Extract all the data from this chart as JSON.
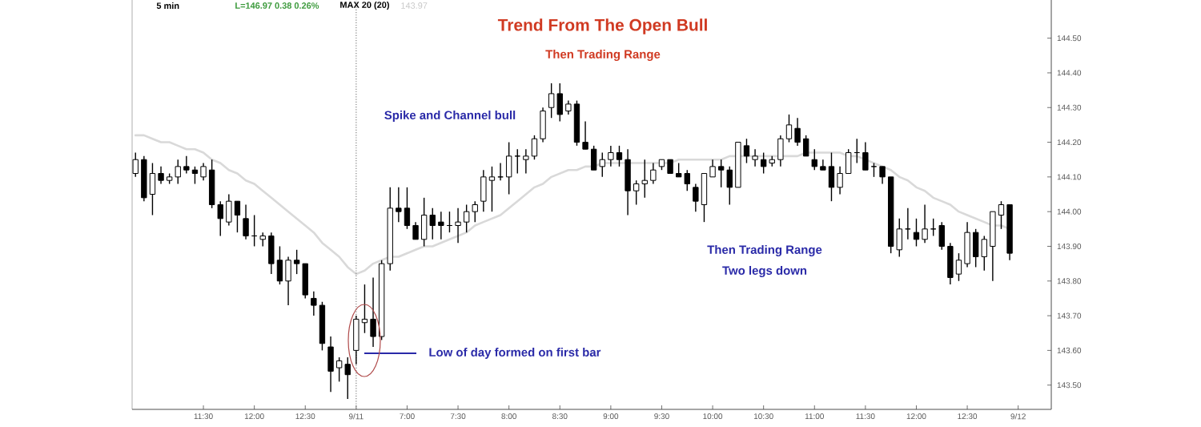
{
  "chart_data": {
    "type": "candlestick",
    "title": "Trend From The Open Bull",
    "subtitle": "Then Trading Range",
    "categories": [
      null,
      null,
      null,
      null,
      null,
      null,
      null,
      null,
      "11:30",
      null,
      null,
      null,
      null,
      null,
      "12:00",
      null,
      null,
      null,
      null,
      null,
      "12:30",
      null,
      null,
      null,
      null,
      null,
      "9/11",
      null,
      null,
      null,
      null,
      null,
      "7:00",
      null,
      null,
      null,
      null,
      null,
      "7:30",
      null,
      null,
      null,
      null,
      null,
      "8:00",
      null,
      null,
      null,
      null,
      null,
      "8:30",
      null,
      null,
      null,
      null,
      null,
      "9:00",
      null,
      null,
      null,
      null,
      null,
      "9:30",
      null,
      null,
      null,
      null,
      null,
      "10:00",
      null,
      null,
      null,
      null,
      null,
      "10:30",
      null,
      null,
      null,
      null,
      null,
      "11:00",
      null,
      null,
      null,
      null,
      null,
      "11:30",
      null,
      null,
      null,
      null,
      null,
      "12:00",
      null,
      null,
      null,
      null,
      null,
      "12:30",
      null,
      null,
      null,
      null,
      null,
      "9/12"
    ],
    "ohlc": [
      [
        144.11,
        144.17,
        144.1,
        144.15
      ],
      [
        144.15,
        144.16,
        144.03,
        144.04
      ],
      [
        144.05,
        144.14,
        143.99,
        144.11
      ],
      [
        144.11,
        144.13,
        144.08,
        144.09
      ],
      [
        144.09,
        144.11,
        144.08,
        144.1
      ],
      [
        144.1,
        144.15,
        144.08,
        144.13
      ],
      [
        144.13,
        144.16,
        144.11,
        144.12
      ],
      [
        144.12,
        144.13,
        144.08,
        144.11
      ],
      [
        144.1,
        144.14,
        144.09,
        144.13
      ],
      [
        144.12,
        144.15,
        144.01,
        144.02
      ],
      [
        144.02,
        144.03,
        143.93,
        143.98
      ],
      [
        143.97,
        144.05,
        143.96,
        144.03
      ],
      [
        144.03,
        144.03,
        143.94,
        143.99
      ],
      [
        143.98,
        144.02,
        143.92,
        143.93
      ],
      [
        143.93,
        143.99,
        143.9,
        143.93
      ],
      [
        143.92,
        143.94,
        143.9,
        143.93
      ],
      [
        143.93,
        143.94,
        143.82,
        143.85
      ],
      [
        143.86,
        143.9,
        143.79,
        143.8
      ],
      [
        143.8,
        143.87,
        143.73,
        143.86
      ],
      [
        143.86,
        143.89,
        143.82,
        143.85
      ],
      [
        143.85,
        143.85,
        143.75,
        143.76
      ],
      [
        143.75,
        143.77,
        143.7,
        143.73
      ],
      [
        143.73,
        143.74,
        143.6,
        143.62
      ],
      [
        143.61,
        143.64,
        143.48,
        143.54
      ],
      [
        143.55,
        143.58,
        143.51,
        143.57
      ],
      [
        143.56,
        143.58,
        143.46,
        143.53
      ],
      [
        143.6,
        143.7,
        143.56,
        143.69
      ],
      [
        143.68,
        143.79,
        143.65,
        143.69
      ],
      [
        143.69,
        143.81,
        143.61,
        143.64
      ],
      [
        143.64,
        143.86,
        143.63,
        143.85
      ],
      [
        143.85,
        144.07,
        143.83,
        144.01
      ],
      [
        144.01,
        144.07,
        143.97,
        144.0
      ],
      [
        144.01,
        144.07,
        143.95,
        143.96
      ],
      [
        143.96,
        143.97,
        143.92,
        143.92
      ],
      [
        143.92,
        144.04,
        143.9,
        143.99
      ],
      [
        143.99,
        144.01,
        143.92,
        143.96
      ],
      [
        143.97,
        144.0,
        143.92,
        143.96
      ],
      [
        143.96,
        144.0,
        143.94,
        143.96
      ],
      [
        143.96,
        144.01,
        143.91,
        143.97
      ],
      [
        143.97,
        144.02,
        143.94,
        144.0
      ],
      [
        144.0,
        144.03,
        143.97,
        144.02
      ],
      [
        144.03,
        144.12,
        144.0,
        144.1
      ],
      [
        144.09,
        144.13,
        144.0,
        144.1
      ],
      [
        144.1,
        144.14,
        144.09,
        144.1
      ],
      [
        144.1,
        144.2,
        144.05,
        144.16
      ],
      [
        144.16,
        144.18,
        144.11,
        144.16
      ],
      [
        144.15,
        144.18,
        144.11,
        144.16
      ],
      [
        144.16,
        144.22,
        144.15,
        144.21
      ],
      [
        144.21,
        144.3,
        144.2,
        144.29
      ],
      [
        144.3,
        144.37,
        144.27,
        144.34
      ],
      [
        144.34,
        144.37,
        144.26,
        144.28
      ],
      [
        144.29,
        144.32,
        144.28,
        144.31
      ],
      [
        144.31,
        144.32,
        144.19,
        144.2
      ],
      [
        144.2,
        144.26,
        144.18,
        144.18
      ],
      [
        144.18,
        144.19,
        144.12,
        144.12
      ],
      [
        144.13,
        144.17,
        144.1,
        144.15
      ],
      [
        144.15,
        144.19,
        144.13,
        144.17
      ],
      [
        144.17,
        144.19,
        144.13,
        144.15
      ],
      [
        144.15,
        144.18,
        143.99,
        144.06
      ],
      [
        144.06,
        144.09,
        144.02,
        144.08
      ],
      [
        144.08,
        144.15,
        144.04,
        144.09
      ],
      [
        144.09,
        144.14,
        144.08,
        144.12
      ],
      [
        144.13,
        144.15,
        144.12,
        144.15
      ],
      [
        144.15,
        144.15,
        144.11,
        144.11
      ],
      [
        144.11,
        144.14,
        144.1,
        144.1
      ],
      [
        144.11,
        144.12,
        144.06,
        144.08
      ],
      [
        144.07,
        144.08,
        144.0,
        144.03
      ],
      [
        144.02,
        144.11,
        143.97,
        144.11
      ],
      [
        144.1,
        144.15,
        144.1,
        144.13
      ],
      [
        144.13,
        144.15,
        144.07,
        144.12
      ],
      [
        144.12,
        144.13,
        144.02,
        144.07
      ],
      [
        144.07,
        144.2,
        144.07,
        144.2
      ],
      [
        144.19,
        144.21,
        144.14,
        144.16
      ],
      [
        144.15,
        144.18,
        144.13,
        144.16
      ],
      [
        144.15,
        144.17,
        144.11,
        144.13
      ],
      [
        144.14,
        144.16,
        144.13,
        144.15
      ],
      [
        144.15,
        144.22,
        144.13,
        144.21
      ],
      [
        144.21,
        144.28,
        144.2,
        144.25
      ],
      [
        144.24,
        144.27,
        144.19,
        144.2
      ],
      [
        144.21,
        144.22,
        144.16,
        144.16
      ],
      [
        144.15,
        144.18,
        144.12,
        144.13
      ],
      [
        144.13,
        144.15,
        144.12,
        144.12
      ],
      [
        144.13,
        144.17,
        144.03,
        144.07
      ],
      [
        144.07,
        144.13,
        144.05,
        144.11
      ],
      [
        144.11,
        144.18,
        144.11,
        144.17
      ],
      [
        144.17,
        144.21,
        144.14,
        144.17
      ],
      [
        144.17,
        144.2,
        144.12,
        144.12
      ],
      [
        144.13,
        144.14,
        144.1,
        144.13
      ],
      [
        144.13,
        144.13,
        144.08,
        144.1
      ],
      [
        144.1,
        144.1,
        143.88,
        143.9
      ],
      [
        143.89,
        143.98,
        143.87,
        143.95
      ],
      [
        143.95,
        144.01,
        143.92,
        143.95
      ],
      [
        143.94,
        143.98,
        143.9,
        143.92
      ],
      [
        143.92,
        144.02,
        143.91,
        143.95
      ],
      [
        143.95,
        143.98,
        143.93,
        143.95
      ],
      [
        143.96,
        143.97,
        143.89,
        143.9
      ],
      [
        143.9,
        143.91,
        143.79,
        143.81
      ],
      [
        143.82,
        143.88,
        143.8,
        143.86
      ],
      [
        143.85,
        143.97,
        143.84,
        143.94
      ],
      [
        143.94,
        143.95,
        143.84,
        143.87
      ],
      [
        143.87,
        143.93,
        143.83,
        143.92
      ],
      [
        143.9,
        144.0,
        143.8,
        144.0
      ],
      [
        143.99,
        144.03,
        143.95,
        144.02
      ],
      [
        144.02,
        144.02,
        143.86,
        143.88
      ],
      null
    ],
    "series": [
      {
        "type": "line",
        "color": "#d9d9d9",
        "values": [
          144.22,
          144.22,
          144.21,
          144.2,
          144.2,
          144.19,
          144.18,
          144.18,
          144.17,
          144.15,
          144.14,
          144.12,
          144.11,
          144.09,
          144.08,
          144.06,
          144.04,
          144.02,
          144.0,
          143.98,
          143.96,
          143.94,
          143.91,
          143.89,
          143.87,
          143.84,
          143.82,
          143.83,
          143.85,
          143.86,
          143.87,
          143.87,
          143.88,
          143.89,
          143.9,
          143.9,
          143.91,
          143.92,
          143.93,
          143.94,
          143.96,
          143.97,
          143.98,
          143.99,
          144.01,
          144.03,
          144.05,
          144.07,
          144.08,
          144.1,
          144.11,
          144.12,
          144.12,
          144.13,
          144.13,
          144.14,
          144.14,
          144.14,
          144.14,
          144.14,
          144.14,
          144.14,
          144.14,
          144.14,
          144.15,
          144.15,
          144.15,
          144.15,
          144.15,
          144.15,
          144.16,
          144.16,
          144.16,
          144.16,
          144.16,
          144.16,
          144.16,
          144.16,
          144.16,
          144.17,
          144.17,
          144.17,
          144.17,
          144.17,
          144.16,
          144.16,
          144.15,
          144.14,
          144.13,
          144.12,
          144.1,
          144.09,
          144.07,
          144.06,
          144.04,
          144.03,
          144.02,
          144.0,
          143.99,
          143.98,
          143.97,
          143.96,
          143.96,
          143.95,
          null
        ]
      }
    ],
    "ylim": [
      143.43,
      144.61
    ],
    "yticks": [
      {
        "value": 143.5,
        "label": "143.50"
      },
      {
        "value": 143.6,
        "label": "143.60"
      },
      {
        "value": 143.7,
        "label": "143.70"
      },
      {
        "value": 143.8,
        "label": "143.80"
      },
      {
        "value": 143.9,
        "label": "143.90"
      },
      {
        "value": 144.0,
        "label": "144.00"
      },
      {
        "value": 144.1,
        "label": "144.10"
      },
      {
        "value": 144.2,
        "label": "144.20"
      },
      {
        "value": 144.3,
        "label": "144.30"
      },
      {
        "value": 144.4,
        "label": "144.40"
      },
      {
        "value": 144.5,
        "label": "144.50"
      }
    ],
    "ref_lines": [
      {
        "axis": "x",
        "value": "9/11",
        "line_style": "dotted",
        "color": "#808080"
      }
    ],
    "annotations": [
      "5 min",
      "L=146.97 0.38 0.26%",
      "MAX 20 (20)",
      "143.97",
      "Spike and Channel bull",
      "Then Trading Range",
      "Two legs down",
      "Low of day formed on first bar"
    ]
  }
}
